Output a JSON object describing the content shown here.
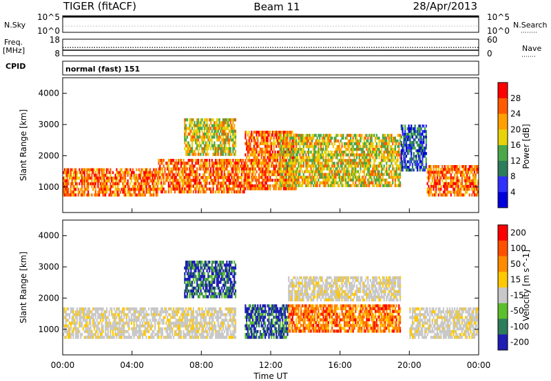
{
  "header": {
    "title": "TIGER (fitACF)",
    "beam": "Beam 11",
    "date": "28/Apr/2013"
  },
  "strips": {
    "nsky_label": "N.Sky",
    "nsky_ticks": [
      "10^5",
      "10^0"
    ],
    "nsearch_label": "N.Search",
    "freq_label": "Freq.",
    "freq_unit": "[MHz]",
    "freq_ticks": [
      "18",
      "8"
    ],
    "nave_label": "Nave",
    "nave_ticks": [
      "60",
      "0"
    ],
    "cpid_label": "CPID",
    "cpid_value": "normal (fast) 151"
  },
  "colors": {
    "power": [
      "#0000dc",
      "#3030ff",
      "#2d7d5a",
      "#4aa84a",
      "#e8d20a",
      "#ffa000",
      "#ff5a00",
      "#ff0000"
    ],
    "velocity": [
      "#1e1eb4",
      "#2d7d5a",
      "#5cbf2c",
      "#c8c8c8",
      "#ffc800",
      "#ff8c00",
      "#ff5000",
      "#ff0000"
    ],
    "ground_scatter": "#b4b4b4"
  },
  "chart_data": [
    {
      "type": "heatmap",
      "name": "power",
      "xlabel": "",
      "ylabel": "Slant Range [km]",
      "xlim": [
        0,
        24
      ],
      "ylim": [
        180,
        4500
      ],
      "y_ticks": [
        "1000",
        "2000",
        "3000",
        "4000"
      ],
      "colorbar": {
        "label": "Power [dB]",
        "range": [
          0,
          32
        ],
        "ticks": [
          "4",
          "8",
          "12",
          "16",
          "20",
          "24",
          "28"
        ]
      },
      "regions": [
        {
          "t0": 0.0,
          "t1": 5.5,
          "r0": 700,
          "r1": 1600,
          "level": "high"
        },
        {
          "t0": 5.5,
          "t1": 10.5,
          "r0": 800,
          "r1": 1900,
          "level": "high"
        },
        {
          "t0": 7.0,
          "t1": 10.0,
          "r0": 2000,
          "r1": 3200,
          "level": "medium"
        },
        {
          "t0": 10.5,
          "t1": 13.5,
          "r0": 900,
          "r1": 2800,
          "level": "high"
        },
        {
          "t0": 12.5,
          "t1": 19.5,
          "r0": 1000,
          "r1": 2700,
          "level": "medium"
        },
        {
          "t0": 19.5,
          "t1": 21.0,
          "r0": 1500,
          "r1": 3000,
          "level": "low"
        },
        {
          "t0": 21.0,
          "t1": 24.0,
          "r0": 700,
          "r1": 1700,
          "level": "high"
        }
      ]
    },
    {
      "type": "heatmap",
      "name": "velocity",
      "xlabel": "Time UT",
      "ylabel": "Slant Range [km]",
      "xlim": [
        0,
        24
      ],
      "ylim": [
        180,
        4500
      ],
      "x_ticks": [
        "00:00",
        "04:00",
        "08:00",
        "12:00",
        "16:00",
        "20:00",
        "00:00"
      ],
      "y_ticks": [
        "1000",
        "2000",
        "3000",
        "4000"
      ],
      "colorbar": {
        "label": "Velocity [m s^-1]",
        "ticks": [
          "200",
          "100",
          "50",
          "15",
          "-15",
          "-50",
          "-100",
          "-200"
        ]
      },
      "regions": [
        {
          "t0": 0.0,
          "t1": 10.0,
          "r0": 700,
          "r1": 1700,
          "level": "ground"
        },
        {
          "t0": 7.0,
          "t1": 10.0,
          "r0": 2000,
          "r1": 3200,
          "level": "toward"
        },
        {
          "t0": 10.5,
          "t1": 13.0,
          "r0": 700,
          "r1": 1800,
          "level": "toward"
        },
        {
          "t0": 13.0,
          "t1": 19.5,
          "r0": 900,
          "r1": 1800,
          "level": "away"
        },
        {
          "t0": 13.0,
          "t1": 19.5,
          "r0": 1900,
          "r1": 2700,
          "level": "ground"
        },
        {
          "t0": 20.0,
          "t1": 24.0,
          "r0": 700,
          "r1": 1700,
          "level": "ground"
        }
      ]
    }
  ]
}
